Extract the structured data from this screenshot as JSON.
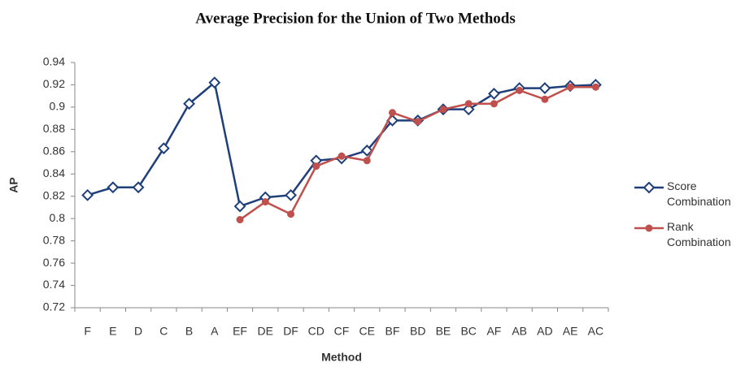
{
  "chart_data": {
    "type": "line",
    "title": "Average Precision for the Union of Two Methods",
    "x_label": "Method",
    "y_label": "AP",
    "categories": [
      "F",
      "E",
      "D",
      "C",
      "B",
      "A",
      "EF",
      "DE",
      "DF",
      "CD",
      "CF",
      "CE",
      "BF",
      "BD",
      "BE",
      "BC",
      "AF",
      "AB",
      "AD",
      "AE",
      "AC"
    ],
    "series": [
      {
        "name": "Score Combination",
        "color": "#1f3f7a",
        "marker": "diamond",
        "values": [
          0.821,
          0.828,
          0.828,
          0.863,
          0.903,
          0.922,
          0.811,
          0.819,
          0.821,
          0.852,
          0.854,
          0.861,
          0.888,
          0.888,
          0.898,
          0.898,
          0.912,
          0.917,
          0.917,
          0.919,
          0.92
        ]
      },
      {
        "name": "Rank Combination",
        "color": "#c0504d",
        "marker": "circle",
        "values": [
          null,
          null,
          null,
          null,
          null,
          null,
          0.799,
          0.815,
          0.804,
          0.847,
          0.856,
          0.852,
          0.895,
          0.887,
          0.898,
          0.903,
          0.903,
          0.915,
          0.907,
          0.918,
          0.918
        ]
      }
    ],
    "ylim": [
      0.72,
      0.94
    ],
    "yticks": [
      0.72,
      0.74,
      0.76,
      0.78,
      0.8,
      0.82,
      0.84,
      0.86,
      0.88,
      0.9,
      0.92,
      0.94
    ],
    "grid": false,
    "legend": "right"
  }
}
